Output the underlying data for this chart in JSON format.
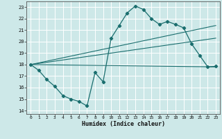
{
  "xlabel": "Humidex (Indice chaleur)",
  "background_color": "#cde8e8",
  "grid_color": "#b8d8d8",
  "line_color": "#1a6e6e",
  "xlim": [
    -0.5,
    23.5
  ],
  "ylim": [
    13.7,
    23.5
  ],
  "xticks": [
    0,
    1,
    2,
    3,
    4,
    5,
    6,
    7,
    8,
    9,
    10,
    11,
    12,
    13,
    14,
    15,
    16,
    17,
    18,
    19,
    20,
    21,
    22,
    23
  ],
  "yticks": [
    14,
    15,
    16,
    17,
    18,
    19,
    20,
    21,
    22,
    23
  ],
  "main_line": {
    "x": [
      0,
      1,
      2,
      3,
      4,
      5,
      6,
      7,
      8,
      9,
      10,
      11,
      12,
      13,
      14,
      15,
      16,
      17,
      18,
      19,
      20,
      21,
      22,
      23
    ],
    "y": [
      18.0,
      17.5,
      16.7,
      16.1,
      15.3,
      15.0,
      14.8,
      14.4,
      17.3,
      16.5,
      20.3,
      21.4,
      22.5,
      23.1,
      22.8,
      22.0,
      21.5,
      21.75,
      21.5,
      21.2,
      19.8,
      18.8,
      17.8,
      17.85
    ]
  },
  "straight_lines": [
    {
      "x": [
        0,
        23
      ],
      "y": [
        18.0,
        21.4
      ]
    },
    {
      "x": [
        0,
        23
      ],
      "y": [
        18.0,
        20.3
      ]
    },
    {
      "x": [
        0,
        23
      ],
      "y": [
        18.0,
        17.8
      ]
    }
  ]
}
